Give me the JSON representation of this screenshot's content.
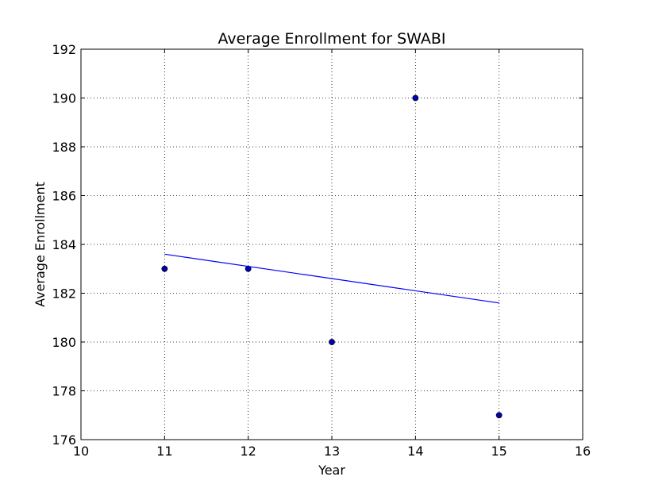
{
  "chart_data": {
    "type": "scatter",
    "title": "Average Enrollment for SWABI",
    "xlabel": "Year",
    "ylabel": "Average Enrollment",
    "xlim": [
      10,
      16
    ],
    "ylim": [
      176,
      192
    ],
    "xticks": [
      10,
      11,
      12,
      13,
      14,
      15,
      16
    ],
    "yticks": [
      176,
      178,
      180,
      182,
      184,
      186,
      188,
      190,
      192
    ],
    "grid": true,
    "grid_style": "dotted",
    "series": [
      {
        "type": "scatter",
        "x": [
          11,
          12,
          13,
          14,
          15
        ],
        "y": [
          183,
          183,
          180,
          190,
          177
        ],
        "color": "#0000bf"
      },
      {
        "type": "line",
        "x": [
          11,
          15
        ],
        "y": [
          183.6,
          181.6
        ],
        "color": "#0000ff"
      }
    ]
  }
}
